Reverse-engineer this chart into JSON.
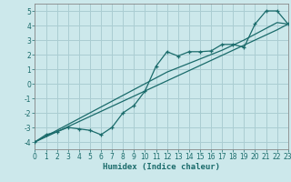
{
  "xlabel": "Humidex (Indice chaleur)",
  "bg_color": "#cce8eb",
  "grid_color": "#aacdd2",
  "line_color": "#1a6b6b",
  "x_data": [
    0,
    1,
    2,
    3,
    4,
    5,
    6,
    7,
    8,
    9,
    10,
    11,
    12,
    13,
    14,
    15,
    16,
    17,
    18,
    19,
    20,
    21,
    22,
    23
  ],
  "y_zigzag": [
    -4.0,
    -3.5,
    -3.3,
    -3.0,
    -3.1,
    -3.2,
    -3.5,
    -3.0,
    -2.0,
    -1.5,
    -0.5,
    1.2,
    2.2,
    1.9,
    2.2,
    2.2,
    2.25,
    2.7,
    2.7,
    2.5,
    4.1,
    5.0,
    5.0,
    4.1
  ],
  "y_line1": [
    -4.0,
    -3.65,
    -3.3,
    -2.95,
    -2.6,
    -2.25,
    -1.9,
    -1.55,
    -1.2,
    -0.85,
    -0.5,
    -0.15,
    0.2,
    0.55,
    0.9,
    1.25,
    1.6,
    1.95,
    2.3,
    2.65,
    3.0,
    3.35,
    3.7,
    4.1
  ],
  "y_line2": [
    -4.0,
    -3.6,
    -3.2,
    -2.8,
    -2.4,
    -2.0,
    -1.6,
    -1.2,
    -0.8,
    -0.4,
    0.0,
    0.4,
    0.8,
    1.1,
    1.4,
    1.7,
    2.0,
    2.3,
    2.65,
    3.0,
    3.4,
    3.8,
    4.2,
    4.1
  ],
  "xlim": [
    0,
    23
  ],
  "ylim": [
    -4.5,
    5.5
  ],
  "xticks": [
    0,
    1,
    2,
    3,
    4,
    5,
    6,
    7,
    8,
    9,
    10,
    11,
    12,
    13,
    14,
    15,
    16,
    17,
    18,
    19,
    20,
    21,
    22,
    23
  ],
  "yticks": [
    -4,
    -3,
    -2,
    -1,
    0,
    1,
    2,
    3,
    4,
    5
  ]
}
